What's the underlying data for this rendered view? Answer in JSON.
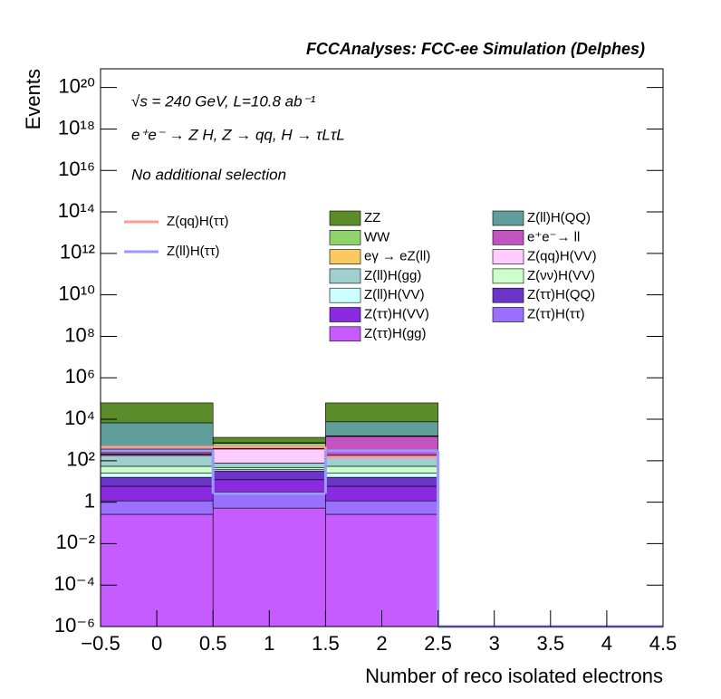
{
  "chart_data": {
    "type": "stacked-histogram",
    "title": "FCCAnalyses: FCC-ee Simulation (Delphes)",
    "annotations": [
      "√s = 240 GeV, L=10.8 ab⁻¹",
      "e⁺e⁻ → Z H, Z → qq, H → τLτL",
      "No additional selection"
    ],
    "xlabel": "Number of reco isolated electrons",
    "ylabel": "Events",
    "log_y": true,
    "bins": [
      -0.5,
      0.5,
      1.5,
      2.5,
      3.5,
      4.5
    ],
    "xlim": [
      -0.5,
      4.5
    ],
    "xticks": [
      {
        "value": -0.5,
        "label": "−0.5"
      },
      0,
      0.5,
      1,
      1.5,
      2,
      2.5,
      3,
      3.5,
      4,
      4.5
    ],
    "ylim": [
      1e-06,
      800000000000000000000
    ],
    "yticks": [
      {
        "value": 1e-06,
        "label": "10⁻⁶"
      },
      {
        "value": 0.0001,
        "label": "10⁻⁴"
      },
      {
        "value": 0.01,
        "label": "10⁻²"
      },
      1,
      {
        "value": 100,
        "label": "10²"
      },
      {
        "value": 10000,
        "label": "10⁴"
      },
      {
        "value": 1000000,
        "label": "10⁶"
      },
      {
        "value": 100000000,
        "label": "10⁸"
      },
      {
        "value": 10000000000,
        "label": "10¹⁰"
      },
      {
        "value": 1000000000000,
        "label": "10¹²"
      },
      {
        "value": 100000000000000,
        "label": "10¹⁴"
      },
      {
        "value": 10000000000000000,
        "label": "10¹⁶"
      },
      {
        "value": 1000000000000000000,
        "label": "10¹⁸"
      },
      {
        "value": 100000000000000000000,
        "label": "10²⁰"
      }
    ],
    "series": [
      {
        "name": "Z(ττ)H(gg)",
        "color": "#c65cff",
        "values": [
          0.26,
          0.52,
          0.26,
          0,
          0
        ]
      },
      {
        "name": "Z(ττ)H(ττ)",
        "color": "#9a70ff",
        "values": [
          0.9,
          2.6,
          0.9,
          0,
          0
        ]
      },
      {
        "name": "Z(ττ)H(VV)",
        "color": "#8a2be2",
        "values": [
          4.7,
          9,
          4.7,
          0,
          0
        ]
      },
      {
        "name": "Z(ττ)H(QQ)",
        "color": "#6a35c8",
        "values": [
          10,
          20,
          10,
          0,
          0
        ]
      },
      {
        "name": "Z(ll)H(VV)",
        "color": "#ccffff",
        "values": [
          10,
          5,
          10,
          0,
          0
        ]
      },
      {
        "name": "Z(νν)H(VV)",
        "color": "#ccffcc",
        "values": [
          28,
          10,
          28,
          0,
          0
        ]
      },
      {
        "name": "Z(ll)H(gg)",
        "color": "#9fcfcf",
        "values": [
          126,
          30,
          100,
          0,
          0
        ]
      },
      {
        "name": "Z(qq)H(VV)",
        "color": "#ffccff",
        "values": [
          20,
          290,
          20,
          0,
          0
        ]
      },
      {
        "name": "eγ → eZ(ll)",
        "color": "#fcc860",
        "values": [
          10,
          20,
          10,
          0,
          0
        ]
      },
      {
        "name": "e⁺e⁻→ ll",
        "color": "#c154c1",
        "values": [
          50,
          100,
          1300,
          0,
          0
        ]
      },
      {
        "name": "WW",
        "color": "#8fd36a",
        "values": [
          100,
          200,
          100,
          0,
          0
        ]
      },
      {
        "name": "Z(ll)H(QQ)",
        "color": "#5f9e9a",
        "values": [
          6400,
          50,
          6000,
          0,
          0
        ]
      },
      {
        "name": "ZZ",
        "color": "#5b8c2a",
        "values": [
          55000,
          600,
          54000,
          0,
          0
        ]
      }
    ],
    "lines": [
      {
        "name": "Z(qq)H(ττ)",
        "color": "#ff9a9a",
        "values": [
          450,
          460,
          150,
          0,
          0
        ]
      },
      {
        "name": "Z(ll)H(ττ)",
        "color": "#9a9aff",
        "values": [
          300,
          2.6,
          300,
          0,
          0
        ]
      }
    ]
  }
}
